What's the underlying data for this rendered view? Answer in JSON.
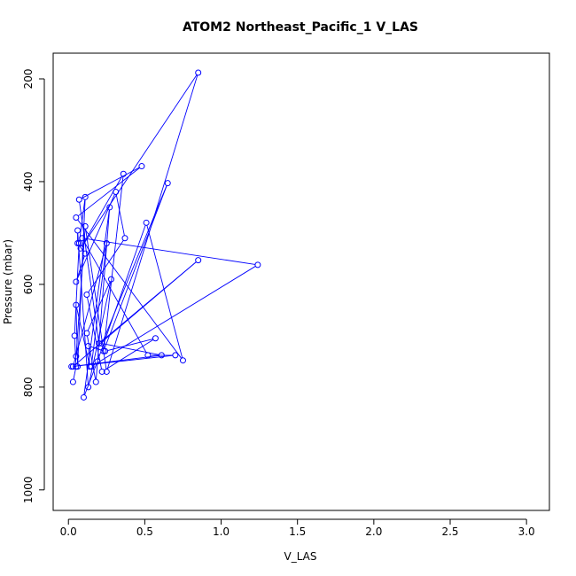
{
  "chart_data": {
    "type": "line",
    "title": "ATOM2 Northeast_Pacific_1 V_LAS",
    "xlabel": "V_LAS",
    "ylabel": "Pressure (mbar)",
    "xlim": [
      -0.1,
      3.15
    ],
    "ylim": [
      1040,
      150
    ],
    "y_inverted": true,
    "xticks": [
      0.0,
      0.5,
      1.0,
      1.5,
      2.0,
      2.5,
      3.0
    ],
    "xtick_labels": [
      "0.0",
      "0.5",
      "1.0",
      "1.5",
      "2.0",
      "2.5",
      "3.0"
    ],
    "yticks": [
      200,
      400,
      600,
      800,
      1000
    ],
    "ytick_labels": [
      "200",
      "400",
      "600",
      "800",
      "1000"
    ],
    "grid": false,
    "color": "#0000ff",
    "series": [
      {
        "points": [
          [
            0.03,
            790
          ],
          [
            0.05,
            760
          ],
          [
            0.04,
            700
          ],
          [
            0.07,
            520
          ],
          [
            0.11,
            430
          ],
          [
            0.06,
            760
          ],
          [
            0.05,
            640
          ],
          [
            0.14,
            760
          ],
          [
            0.13,
            720
          ],
          [
            0.24,
            730
          ],
          [
            0.57,
            705
          ],
          [
            0.22,
            770
          ],
          [
            0.12,
            620
          ],
          [
            0.37,
            510
          ],
          [
            0.31,
            420
          ],
          [
            0.05,
            595
          ],
          [
            0.11,
            540
          ],
          [
            0.06,
            520
          ],
          [
            0.06,
            495
          ],
          [
            0.13,
            800
          ],
          [
            0.28,
            590
          ],
          [
            0.12,
            695
          ],
          [
            0.18,
            790
          ],
          [
            0.27,
            450
          ],
          [
            0.1,
            820
          ],
          [
            0.19,
            750
          ],
          [
            0.51,
            480
          ],
          [
            0.75,
            748
          ],
          [
            0.05,
            470
          ],
          [
            0.48,
            370
          ],
          [
            0.07,
            435
          ],
          [
            0.2,
            715
          ],
          [
            0.85,
            553
          ],
          [
            0.03,
            760
          ],
          [
            0.25,
            520
          ],
          [
            0.15,
            760
          ],
          [
            1.24,
            562
          ],
          [
            0.09,
            510
          ],
          [
            0.52,
            738
          ],
          [
            0.7,
            738
          ],
          [
            0.02,
            760
          ],
          [
            0.61,
            738
          ],
          [
            0.22,
            715
          ],
          [
            0.65,
            403
          ],
          [
            0.23,
            730
          ],
          [
            0.36,
            385
          ],
          [
            0.08,
            530
          ],
          [
            0.85,
            188
          ],
          [
            0.25,
            770
          ],
          [
            0.11,
            487
          ],
          [
            0.05,
            740
          ]
        ]
      }
    ]
  }
}
